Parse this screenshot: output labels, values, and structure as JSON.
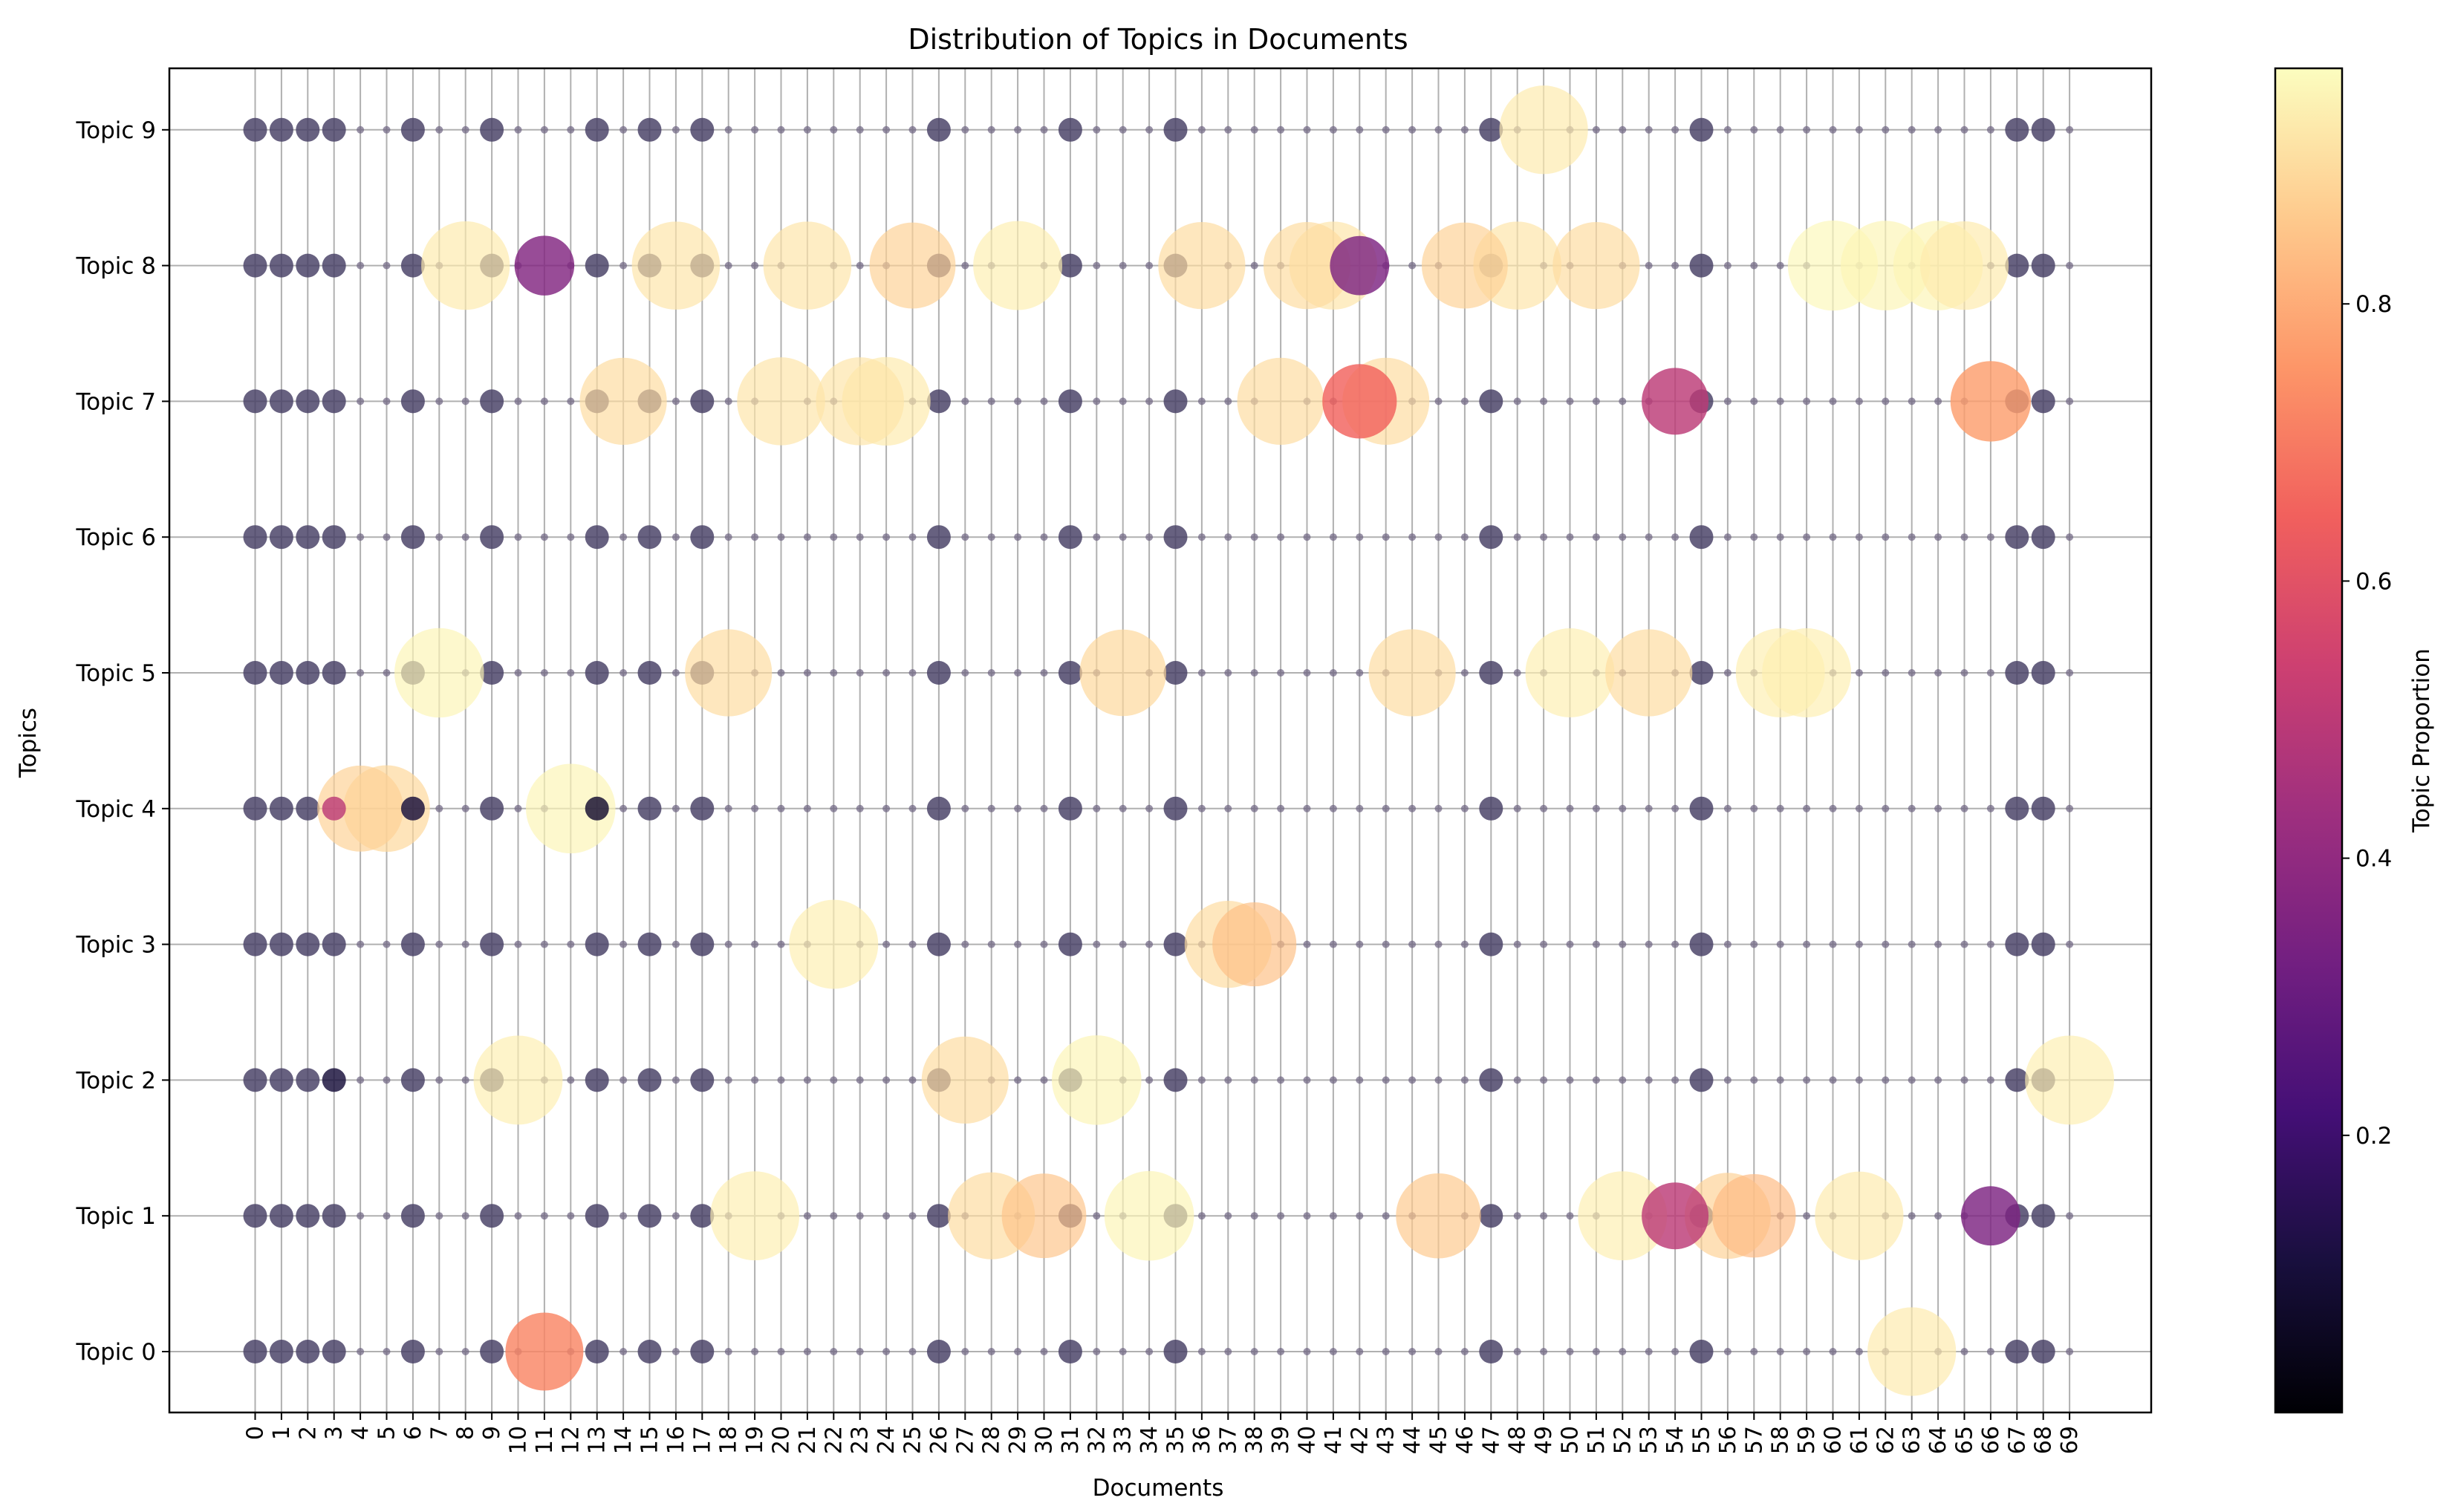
{
  "chart_data": {
    "type": "scatter",
    "title": "Distribution of Topics in Documents",
    "xlabel": "Documents",
    "ylabel": "Topics",
    "grid": true,
    "colormap": "magma",
    "colorbar": {
      "label": "Topic Proportion",
      "range": [
        0.0,
        0.97
      ],
      "ticks": [
        0.2,
        0.4,
        0.6,
        0.8
      ],
      "tick_labels": [
        "0.2",
        "0.4",
        "0.6",
        "0.8"
      ],
      "stops": [
        "#000004",
        "#180f3d",
        "#440f76",
        "#721f81",
        "#9e2f7f",
        "#cd4071",
        "#f1605d",
        "#fd9668",
        "#feca8d",
        "#fcfdbf"
      ]
    },
    "x_categories": [
      "0",
      "1",
      "2",
      "3",
      "4",
      "5",
      "6",
      "7",
      "8",
      "9",
      "10",
      "11",
      "12",
      "13",
      "14",
      "15",
      "16",
      "17",
      "18",
      "19",
      "20",
      "21",
      "22",
      "23",
      "24",
      "25",
      "26",
      "27",
      "28",
      "29",
      "30",
      "31",
      "32",
      "33",
      "34",
      "35",
      "36",
      "37",
      "38",
      "39",
      "40",
      "41",
      "42",
      "43",
      "44",
      "45",
      "46",
      "47",
      "48",
      "49",
      "50",
      "51",
      "52",
      "53",
      "54",
      "55",
      "56",
      "57",
      "58",
      "59",
      "60",
      "61",
      "62",
      "63",
      "64",
      "65",
      "66",
      "67",
      "68",
      "69"
    ],
    "y_categories": [
      "Topic 0",
      "Topic 1",
      "Topic 2",
      "Topic 3",
      "Topic 4",
      "Topic 5",
      "Topic 6",
      "Topic 7",
      "Topic 8",
      "Topic 9"
    ],
    "full_topic_docs": [
      0,
      1,
      2,
      3,
      6,
      9,
      13,
      15,
      17,
      26,
      31,
      35,
      47,
      55,
      67,
      68
    ],
    "points": [
      {
        "doc": 11,
        "topic": 0,
        "value": 0.72
      },
      {
        "doc": 63,
        "topic": 0,
        "value": 0.93
      },
      {
        "doc": 19,
        "topic": 1,
        "value": 0.94
      },
      {
        "doc": 28,
        "topic": 1,
        "value": 0.9
      },
      {
        "doc": 30,
        "topic": 1,
        "value": 0.85
      },
      {
        "doc": 34,
        "topic": 1,
        "value": 0.95
      },
      {
        "doc": 45,
        "topic": 1,
        "value": 0.86
      },
      {
        "doc": 52,
        "topic": 1,
        "value": 0.94
      },
      {
        "doc": 54,
        "topic": 1,
        "value": 0.5
      },
      {
        "doc": 56,
        "topic": 1,
        "value": 0.88
      },
      {
        "doc": 57,
        "topic": 1,
        "value": 0.83
      },
      {
        "doc": 61,
        "topic": 1,
        "value": 0.93
      },
      {
        "doc": 66,
        "topic": 1,
        "value": 0.35
      },
      {
        "doc": 10,
        "topic": 2,
        "value": 0.94
      },
      {
        "doc": 27,
        "topic": 2,
        "value": 0.9
      },
      {
        "doc": 32,
        "topic": 2,
        "value": 0.95
      },
      {
        "doc": 69,
        "topic": 2,
        "value": 0.94
      },
      {
        "doc": 22,
        "topic": 3,
        "value": 0.94
      },
      {
        "doc": 37,
        "topic": 3,
        "value": 0.9
      },
      {
        "doc": 38,
        "topic": 3,
        "value": 0.84
      },
      {
        "doc": 4,
        "topic": 4,
        "value": 0.88
      },
      {
        "doc": 5,
        "topic": 4,
        "value": 0.89
      },
      {
        "doc": 12,
        "topic": 4,
        "value": 0.95
      },
      {
        "doc": 7,
        "topic": 5,
        "value": 0.95
      },
      {
        "doc": 18,
        "topic": 5,
        "value": 0.9
      },
      {
        "doc": 33,
        "topic": 5,
        "value": 0.89
      },
      {
        "doc": 44,
        "topic": 5,
        "value": 0.9
      },
      {
        "doc": 50,
        "topic": 5,
        "value": 0.94
      },
      {
        "doc": 53,
        "topic": 5,
        "value": 0.9
      },
      {
        "doc": 58,
        "topic": 5,
        "value": 0.94
      },
      {
        "doc": 59,
        "topic": 5,
        "value": 0.94
      },
      {
        "doc": 14,
        "topic": 7,
        "value": 0.9
      },
      {
        "doc": 20,
        "topic": 7,
        "value": 0.92
      },
      {
        "doc": 23,
        "topic": 7,
        "value": 0.92
      },
      {
        "doc": 24,
        "topic": 7,
        "value": 0.93
      },
      {
        "doc": 39,
        "topic": 7,
        "value": 0.9
      },
      {
        "doc": 42,
        "topic": 7,
        "value": 0.65
      },
      {
        "doc": 43,
        "topic": 7,
        "value": 0.9
      },
      {
        "doc": 54,
        "topic": 7,
        "value": 0.5
      },
      {
        "doc": 66,
        "topic": 7,
        "value": 0.77
      },
      {
        "doc": 8,
        "topic": 8,
        "value": 0.93
      },
      {
        "doc": 11,
        "topic": 8,
        "value": 0.36
      },
      {
        "doc": 16,
        "topic": 8,
        "value": 0.92
      },
      {
        "doc": 21,
        "topic": 8,
        "value": 0.92
      },
      {
        "doc": 25,
        "topic": 8,
        "value": 0.88
      },
      {
        "doc": 29,
        "topic": 8,
        "value": 0.94
      },
      {
        "doc": 36,
        "topic": 8,
        "value": 0.9
      },
      {
        "doc": 40,
        "topic": 8,
        "value": 0.9
      },
      {
        "doc": 41,
        "topic": 8,
        "value": 0.92
      },
      {
        "doc": 42,
        "topic": 8,
        "value": 0.35
      },
      {
        "doc": 46,
        "topic": 8,
        "value": 0.88
      },
      {
        "doc": 48,
        "topic": 8,
        "value": 0.92
      },
      {
        "doc": 51,
        "topic": 8,
        "value": 0.9
      },
      {
        "doc": 60,
        "topic": 8,
        "value": 0.96
      },
      {
        "doc": 62,
        "topic": 8,
        "value": 0.95
      },
      {
        "doc": 64,
        "topic": 8,
        "value": 0.95
      },
      {
        "doc": 65,
        "topic": 8,
        "value": 0.93
      },
      {
        "doc": 49,
        "topic": 9,
        "value": 0.93
      },
      {
        "doc": 3,
        "topic": 2,
        "value": 0.1
      },
      {
        "doc": 3,
        "topic": 4,
        "value": 0.5
      },
      {
        "doc": 6,
        "topic": 4,
        "value": 0.1
      },
      {
        "doc": 13,
        "topic": 4,
        "value": 0.08
      }
    ]
  }
}
